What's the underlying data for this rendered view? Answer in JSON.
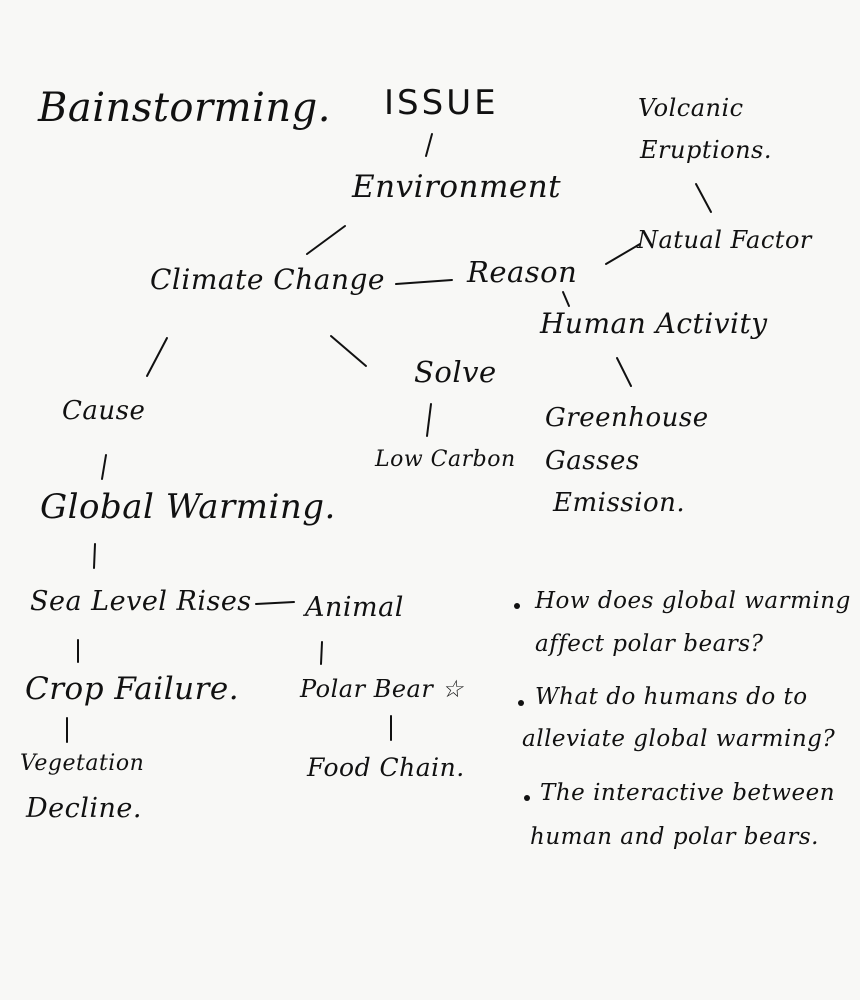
{
  "mindmap": {
    "title": "Bainstorming.",
    "issue": "ISSUE",
    "environment": "Environment",
    "volcanic_line1": "Volcanic",
    "volcanic_line2": "Eruptions.",
    "natural_factor": "Natual Factor",
    "climate_change": "Climate Change",
    "reason": "Reason",
    "human_activity": "Human Activity",
    "solve": "Solve",
    "cause": "Cause",
    "low_carbon": "Low Carbon",
    "greenhouse_line1": "Greenhouse",
    "greenhouse_line2": "Gasses",
    "greenhouse_line3": "Emission.",
    "global_warming": "Global Warming.",
    "sea_level": "Sea Level Rises",
    "animal": "Animal",
    "crop_failure": "Crop Failure.",
    "polar_bear": "Polar Bear ☆",
    "vegetation_line1": "Vegetation",
    "vegetation_line2": "Decline.",
    "food_chain": "Food Chain."
  },
  "questions": [
    {
      "line1": "How does global warming",
      "line2": "affect polar bears?"
    },
    {
      "line1": "What do humans do to",
      "line2": "alleviate global warming?"
    },
    {
      "line1": "The interactive between",
      "line2": "human and polar bears."
    }
  ]
}
